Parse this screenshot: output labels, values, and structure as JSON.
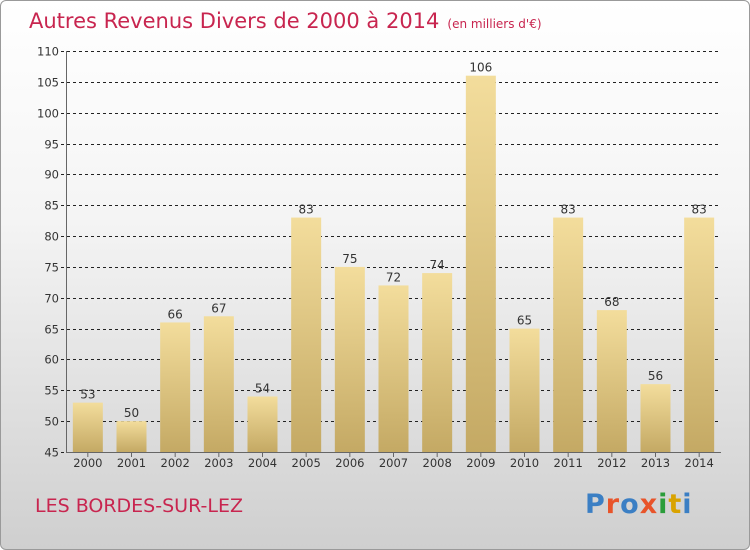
{
  "header": {
    "title": "Autres Revenus Divers de 2000 à 2014",
    "subtitle": "(en milliers d'€)"
  },
  "footer": {
    "commune": "LES BORDES-SUR-LEZ",
    "brand": "Proxiti",
    "brand_colors": [
      "#3b7fc4",
      "#e8542a",
      "#3b7fc4",
      "#e8542a",
      "#2a9d3a",
      "#d9a300",
      "#3b7fc4"
    ]
  },
  "colors": {
    "title": "#c8254f",
    "bar_light": "#f3dd9c",
    "bar_dark": "#c4a964",
    "grid": "#222222"
  },
  "chart_data": {
    "type": "bar",
    "categories": [
      "2000",
      "2001",
      "2002",
      "2003",
      "2004",
      "2005",
      "2006",
      "2007",
      "2008",
      "2009",
      "2010",
      "2011",
      "2012",
      "2013",
      "2014"
    ],
    "values": [
      53,
      50,
      66,
      67,
      54,
      83,
      75,
      72,
      74,
      106,
      65,
      83,
      68,
      56,
      83
    ],
    "title": "Autres Revenus Divers de 2000 à 2014",
    "subtitle": "(en milliers d'€)",
    "ylim": [
      45,
      110
    ],
    "yticks": [
      45,
      50,
      55,
      60,
      65,
      70,
      75,
      80,
      85,
      90,
      95,
      100,
      105,
      110
    ],
    "grid": true
  }
}
